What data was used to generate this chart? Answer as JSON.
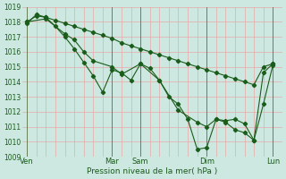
{
  "background_color": "#cce8e0",
  "grid_color": "#e8a8a8",
  "line_color": "#1a5c1a",
  "xlabel": "Pression niveau de la mer( hPa )",
  "ylim": [
    1009,
    1019
  ],
  "ytick_vals": [
    1009,
    1010,
    1011,
    1012,
    1013,
    1014,
    1015,
    1016,
    1017,
    1018,
    1019
  ],
  "xtick_labels": [
    "Ven",
    "Mar",
    "Sam",
    "Dim",
    "Lun"
  ],
  "xtick_positions": [
    0,
    9,
    12,
    19,
    26
  ],
  "xlim": [
    -0.5,
    27.0
  ],
  "series1_x": [
    0,
    1,
    2,
    3,
    4,
    5,
    6,
    7,
    8,
    9,
    10,
    11,
    12,
    13,
    14,
    15,
    16,
    17,
    18,
    19,
    20,
    21,
    22,
    23,
    24,
    25,
    26
  ],
  "series1_y": [
    1018.0,
    1018.4,
    1018.3,
    1018.1,
    1017.9,
    1017.7,
    1017.5,
    1017.3,
    1017.1,
    1016.9,
    1016.6,
    1016.4,
    1016.2,
    1016.0,
    1015.8,
    1015.6,
    1015.4,
    1015.2,
    1015.0,
    1014.8,
    1014.6,
    1014.4,
    1014.2,
    1014.0,
    1013.8,
    1015.0,
    1015.2
  ],
  "series2_x": [
    0,
    1,
    2,
    3,
    4,
    5,
    6,
    7,
    8,
    9,
    10,
    11,
    12,
    13,
    14,
    15,
    16,
    17,
    18,
    19,
    20,
    21,
    22,
    23,
    24,
    25,
    26
  ],
  "series2_y": [
    1017.9,
    1018.5,
    1018.3,
    1017.7,
    1017.0,
    1016.2,
    1015.3,
    1014.4,
    1013.3,
    1014.8,
    1014.6,
    1014.1,
    1015.2,
    1014.9,
    1014.1,
    1013.0,
    1012.5,
    1011.5,
    1009.5,
    1009.6,
    1011.5,
    1011.4,
    1011.5,
    1011.2,
    1010.1,
    1014.6,
    1015.2
  ],
  "series3_x": [
    0,
    2,
    4,
    5,
    6,
    7,
    9,
    10,
    12,
    14,
    16,
    18,
    19,
    20,
    21,
    22,
    23,
    24,
    25,
    26
  ],
  "series3_y": [
    1018.0,
    1018.2,
    1017.2,
    1016.8,
    1016.0,
    1015.4,
    1015.0,
    1014.5,
    1015.2,
    1014.1,
    1012.1,
    1011.3,
    1011.0,
    1011.5,
    1011.3,
    1010.8,
    1010.6,
    1010.1,
    1012.5,
    1015.1
  ],
  "marker": "D",
  "marker_size": 2.2,
  "line_width": 0.8,
  "vline_positions": [
    0,
    9,
    12,
    19,
    26
  ],
  "xlabel_fontsize": 6.5,
  "ytick_fontsize": 5.5,
  "xtick_fontsize": 6.0
}
